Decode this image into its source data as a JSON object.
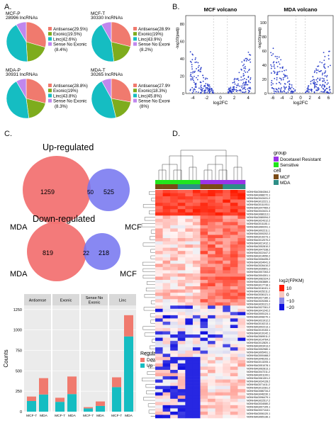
{
  "panels": {
    "a": "A.",
    "b": "B.",
    "c": "C.",
    "d": "D."
  },
  "colors": {
    "antisense": "#f07a6e",
    "exonic": "#7eac1d",
    "linc": "#15bdc2",
    "sense": "#c087ee",
    "volcano": "#2a3ec9",
    "mda": "#f27373",
    "mcf": "#7373f0",
    "docetaxel": "#9b33e8",
    "sensitive": "#21e51d",
    "cell_mcf": "#7a4a16",
    "cell_mda": "#2e8e86",
    "hm_high": "#ff1a00",
    "hm_white": "#f7f4f4",
    "hm_low": "#1010e0"
  },
  "pies": [
    {
      "name": "MCF-P",
      "total": "28996 lncRNAs",
      "values": [
        29.5,
        19.5,
        42.6,
        8.4
      ],
      "legend": [
        "Antisense(29.5%)",
        "Exonic(19.5%)",
        "Linc(42.6%)",
        "Sense No Exonic",
        "(8.4%)"
      ]
    },
    {
      "name": "MCF-T",
      "total": "30330 lncRNAs",
      "values": [
        28.9,
        19.0,
        43.9,
        8.2
      ],
      "legend": [
        "Antisense(28.9%)",
        "Exonic(19%)",
        "Linc(43.9%)",
        "Sense No Exonic",
        "(8.2%)"
      ]
    },
    {
      "name": "MDA-P",
      "total": "30931 lncRNAs",
      "values": [
        28.8,
        19.0,
        43.8,
        8.3
      ],
      "legend": [
        "Antisense(28.8%)",
        "Exonic(19%)",
        "Linc(43.8%)",
        "Sense No Exonic",
        "(8.3%)"
      ]
    },
    {
      "name": "MDA-T",
      "total": "30265 lncRNAs",
      "values": [
        27.9,
        18.3,
        45.8,
        8.0
      ],
      "legend": [
        "Antisense(27.9%)",
        "Exonic(18.3%)",
        "Linc(45.8%)",
        "Sense No Exonic",
        "(8%)"
      ]
    }
  ],
  "volcano": [
    {
      "title": "MCF volcano",
      "xlabel": "log2FC",
      "ylabel": "-log10(padj)",
      "xticks": [
        "-4",
        "-2",
        "0",
        "2",
        "4"
      ],
      "yticks": [
        "0",
        "20",
        "40",
        "60",
        "80"
      ]
    },
    {
      "title": "MDA volcano",
      "xlabel": "log2FC",
      "ylabel": "-log10(padj)",
      "xticks": [
        "-6",
        "-4",
        "-2",
        "0",
        "2",
        "4",
        "6"
      ],
      "yticks": [
        "0",
        "20",
        "40",
        "60",
        "80",
        "100"
      ]
    }
  ],
  "venn": {
    "up_title": "Up-regulated",
    "down_title": "Down-regulated",
    "up": {
      "mda_only": "1259",
      "both": "50",
      "mcf_only": "525"
    },
    "down": {
      "mda_only": "819",
      "both": "22",
      "mcf_only": "218"
    },
    "mda_label": "MDA",
    "mcf_label": "MCF"
  },
  "bars": {
    "ylabel": "Counts",
    "facets": [
      "Antisense",
      "Exonic",
      "Sense No\nExonic",
      "Linc"
    ],
    "yticks": [
      "0",
      "250",
      "500",
      "750",
      "1000",
      "1250"
    ],
    "xticks": [
      "MCF-7",
      "MDA"
    ],
    "legend_title": "Regulate",
    "legend": [
      "Down",
      "Up"
    ]
  },
  "chart_data": {
    "type": "bar",
    "title": "",
    "facets": [
      "Antisense",
      "Exonic",
      "Sense No Exonic",
      "Linc"
    ],
    "categories": [
      "MCF-7",
      "MDA"
    ],
    "ylabel": "Counts",
    "ylim": [
      0,
      1300
    ],
    "series": [
      {
        "name": "Up",
        "values": [
          [
            130,
            210
          ],
          [
            120,
            215
          ],
          [
            40,
            70
          ],
          [
            300,
            920
          ]
        ]
      },
      {
        "name": "Down",
        "values": [
          [
            55,
            200
          ],
          [
            50,
            215
          ],
          [
            15,
            55
          ],
          [
            120,
            260
          ]
        ]
      }
    ]
  },
  "heatmap": {
    "legend_group_title": "group",
    "group_items": [
      "Docetaxel Resistant",
      "Sensitive"
    ],
    "legend_cell_title": "cell",
    "cell_items": [
      "MCF",
      "MDA"
    ],
    "legend_value_title": "log2(FPKM)",
    "value_ticks": [
      "10",
      "0",
      "−10",
      "−20"
    ],
    "rows": [
      "NONHSAG084364.2",
      "NONHSAG088272.1",
      "NONHSAG043431.2",
      "NONHSAG012221.1",
      "NONHSAG011193.1",
      "NONHSAG047469.2",
      "NONHSAG043431.3",
      "NONHSAG088113.1",
      "NONHSAG080094.2",
      "NONHSAG024312.2",
      "NONHSAG011181.1",
      "NONHSAG060291.1",
      "NONHSAG002211.1",
      "NONHSAG000202.2",
      "NONHSAG010273.1",
      "NONHSAG012070.2",
      "NONHSAG021412.1",
      "NONHSAG052810.2",
      "NONHSAG047338.2",
      "NONHSAG022447.2",
      "NONHSAG014050.2",
      "NONHSAG006495.2",
      "NONHSAG034041.3",
      "NONHSAG026410.2",
      "NONHSAG030891.1",
      "NONHSAG007263.2",
      "NONHSAG004301.1",
      "NONHSAG082324.2",
      "NONHSAG063889.1",
      "NONHSAG017718.1",
      "NONHSAG016101.1",
      "NONHSAG025211.2",
      "NONHSAG036121.1",
      "NONHSAG027180.1",
      "NONHSAG020265.1",
      "NONHSAG026121.2",
      "NONHSAG027261.2",
      "NONHSAG041242.2",
      "NONHSAG005124.1",
      "NONHSAG008270.1",
      "NONHSAG031912.2",
      "NONHSAG010213.1",
      "NONHSAG002213.1",
      "NONHSAG019153.1",
      "NONHSAG019142.1",
      "NONHSAG069011.2",
      "NONHSAG014764.2",
      "NONHSAG012820.1",
      "NONHSAG003413.2",
      "NONHSAG052980.1",
      "NONHSAG005491.1",
      "NONHSAG000468.2",
      "NONHSAG048193.1",
      "NONHSAG013205.1",
      "NONHSAG051078.1",
      "NONHSAG062813.1",
      "NONHSAG047211.2",
      "NONHSAG001100.1",
      "NONHSAG061301.2",
      "NONHSAG034128.2",
      "NONHSAG071411.2",
      "NONHSAG012281.2",
      "NONHSAG086734.2",
      "NONHSAG046230.1",
      "NONHSAG096479.1",
      "NONHSAG022517.2",
      "NONHSAG034080.2",
      "NONHSAG007105.1",
      "NONHSAG037118.1",
      "NONHSAG006120.1",
      "NONHSAG065136.1"
    ]
  }
}
